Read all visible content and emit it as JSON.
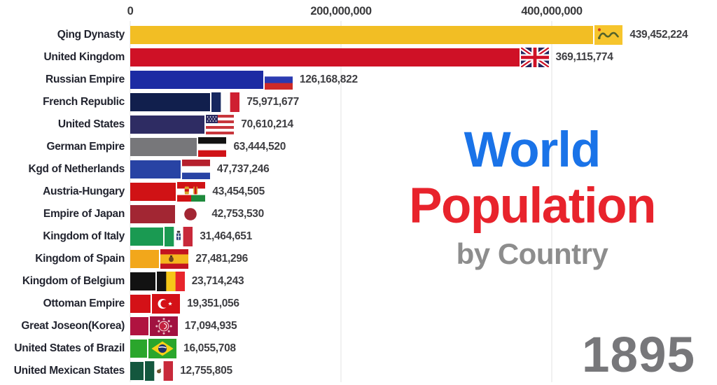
{
  "title_block": {
    "line1": "World",
    "line2": "Population",
    "line3": "by Country",
    "line1_color": "#1a73e8",
    "line2_color": "#e8232c",
    "line3_color": "#8d8d8d",
    "year_color": "#77777a"
  },
  "chart_data": {
    "type": "bar",
    "orientation": "horizontal",
    "title": "World Population by Country",
    "year": "1895",
    "unit": "people",
    "grid": true,
    "axis_position": "top",
    "xlim": [
      0,
      556000000
    ],
    "x_ticks": [
      {
        "label": "0",
        "value": 0
      },
      {
        "label": "200,000,000",
        "value": 200000000
      },
      {
        "label": "400,000,000",
        "value": 400000000
      }
    ],
    "bars": [
      {
        "name": "Qing Dynasty",
        "value": 439452224,
        "label": "439,452,224",
        "color": "#f2be24",
        "flag": {
          "icon": "qing-dynasty-flag",
          "type": "qing",
          "colors": [
            "#f6c52d",
            "#55632a",
            "#d03a1e"
          ]
        }
      },
      {
        "name": "United Kingdom",
        "value": 369115774,
        "label": "369,115,774",
        "color": "#cf1126",
        "flag": {
          "icon": "united-kingdom-flag",
          "type": "union-jack",
          "colors": [
            "#24265e",
            "#ffffff",
            "#cf1126"
          ]
        }
      },
      {
        "name": "Russian Empire",
        "value": 126168822,
        "label": "126,168,822",
        "color": "#1c2ba3",
        "flag": {
          "icon": "russian-empire-flag",
          "type": "hstripes",
          "colors": [
            "#fdfdfd",
            "#2a3ab0",
            "#cd2a28"
          ]
        }
      },
      {
        "name": "French Republic",
        "value": 75971677,
        "label": "75,971,677",
        "color": "#111f4d",
        "flag": {
          "icon": "french-republic-flag",
          "type": "vstripes",
          "colors": [
            "#16275f",
            "#fdfdfd",
            "#cf2031"
          ]
        }
      },
      {
        "name": "United States",
        "value": 70610214,
        "label": "70,610,214",
        "color": "#2e2c63",
        "flag": {
          "icon": "united-states-flag",
          "type": "us",
          "colors": [
            "#2b2a60",
            "#c8363c",
            "#ffffff"
          ]
        }
      },
      {
        "name": "German Empire",
        "value": 63444520,
        "label": "63,444,520",
        "color": "#77777a",
        "flag": {
          "icon": "german-empire-flag",
          "type": "hstripes",
          "colors": [
            "#121212",
            "#fdfdfd",
            "#d01317"
          ]
        }
      },
      {
        "name": "Kgd of Netherlands",
        "value": 47737246,
        "label": "47,737,246",
        "color": "#2843a4",
        "flag": {
          "icon": "netherlands-flag",
          "type": "hstripes",
          "colors": [
            "#b5202d",
            "#fdfdfd",
            "#2843a4"
          ]
        }
      },
      {
        "name": "Austria-Hungary",
        "value": 43454505,
        "label": "43,454,505",
        "color": "#d01215",
        "flag": {
          "icon": "austria-hungary-flag",
          "type": "austria-hungary",
          "colors": [
            "#d01215",
            "#ffffff",
            "#1e8a3c",
            "#d8a42a"
          ]
        }
      },
      {
        "name": "Empire of Japan",
        "value": 42753530,
        "label": "42,753,530",
        "color": "#a22633",
        "flag": {
          "icon": "empire-of-japan-flag",
          "type": "disc",
          "colors": [
            "#ffffff",
            "#a22633"
          ]
        }
      },
      {
        "name": "Kingdom of Italy",
        "value": 31464651,
        "label": "31,464,651",
        "color": "#1a9a52",
        "flag": {
          "icon": "kingdom-of-italy-flag",
          "type": "italy",
          "colors": [
            "#1a9a52",
            "#fdfdfd",
            "#c8293a",
            "#1c2f6b"
          ]
        }
      },
      {
        "name": "Kingdom of Spain",
        "value": 27481296,
        "label": "27,481,296",
        "color": "#f2a71b",
        "flag": {
          "icon": "kingdom-of-spain-flag",
          "type": "spain",
          "colors": [
            "#c31420",
            "#f4b51e",
            "#6e4520"
          ]
        }
      },
      {
        "name": "Kingdom of Belgium",
        "value": 23714243,
        "label": "23,714,243",
        "color": "#121212",
        "flag": {
          "icon": "kingdom-of-belgium-flag",
          "type": "vstripes",
          "colors": [
            "#121212",
            "#f6c718",
            "#e8252c"
          ]
        }
      },
      {
        "name": "Ottoman Empire",
        "value": 19351056,
        "label": "19,351,056",
        "color": "#d41117",
        "flag": {
          "icon": "ottoman-empire-flag",
          "type": "ottoman",
          "colors": [
            "#d41117",
            "#ffffff"
          ]
        }
      },
      {
        "name": "Great Joseon(Korea)",
        "value": 17094935,
        "label": "17,094,935",
        "color": "#b01340",
        "flag": {
          "icon": "great-joseon-korea-flag",
          "type": "joseon",
          "colors": [
            "#a11240",
            "#c2203e",
            "#e9bfc7"
          ]
        }
      },
      {
        "name": "United States of Brazil",
        "value": 16055708,
        "label": "16,055,708",
        "color": "#2aa62c",
        "flag": {
          "icon": "brazil-flag",
          "type": "brazil",
          "colors": [
            "#2aa62c",
            "#f5d018",
            "#1c2f6b"
          ]
        }
      },
      {
        "name": "United Mexican States",
        "value": 12755805,
        "label": "12,755,805",
        "color": "#14573e",
        "flag": {
          "icon": "mexico-flag",
          "type": "mexico",
          "colors": [
            "#14573e",
            "#fdfdfd",
            "#c8293a",
            "#72512e"
          ]
        }
      }
    ]
  }
}
